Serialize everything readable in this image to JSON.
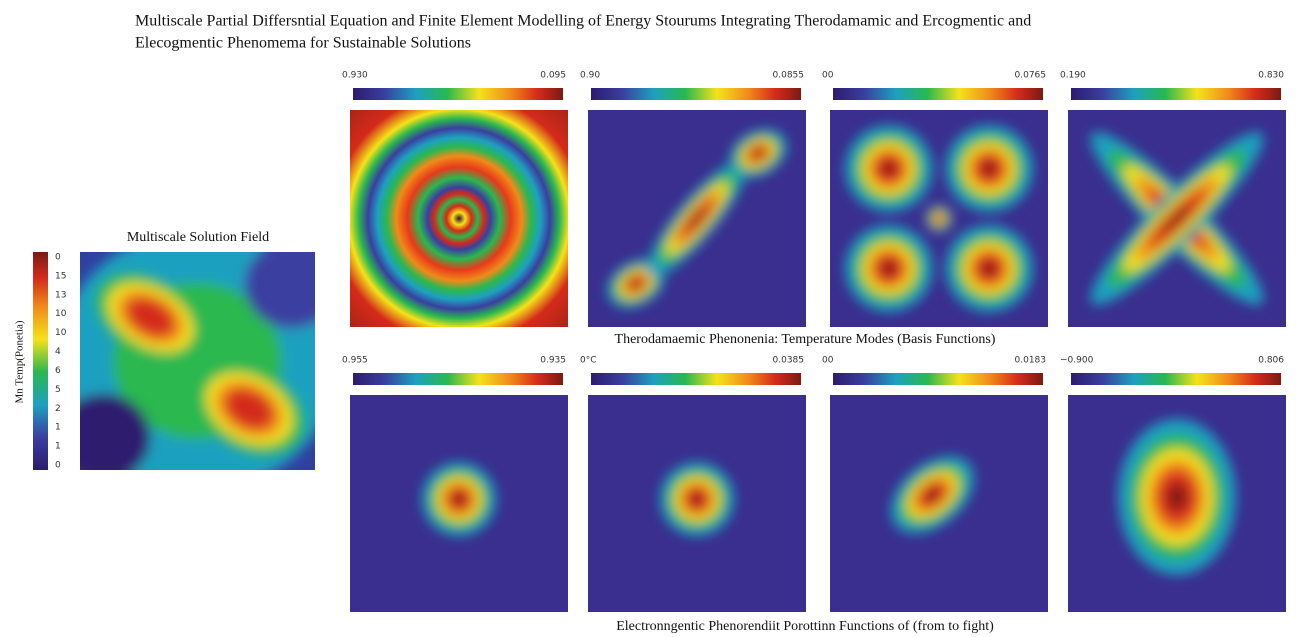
{
  "title": [
    "Multiscale Partial Differsntial Equation and Finite Element Modelling of Energy Stourums Integrating  Therodamamic and Ercogmentic and",
    "Elecogmentic Phenomema for Sustainable Solutions"
  ],
  "solution_field": {
    "title": "Multiscale Solution Field",
    "ylabel": "Mn Temp(Ponetia)",
    "colorbar_labels": [
      "0",
      "15",
      "13",
      "10",
      "10",
      "4",
      "6",
      "5",
      "2",
      "1",
      "1",
      "0"
    ]
  },
  "rows": [
    {
      "caption": "Therodamaemic Phenonenia: Temperature Modes (Basis Functions)",
      "panels": [
        {
          "min": "0.930",
          "max": "0.095"
        },
        {
          "min": "0.90",
          "max": "0.0855"
        },
        {
          "min": "00",
          "max": "0.0765"
        },
        {
          "min": "0.190",
          "max": "0.830"
        }
      ]
    },
    {
      "caption": "Electronngentic Phenorendiit Porottinn Functions of (from to fight)",
      "panels": [
        {
          "min": "0.955",
          "max": "0.935"
        },
        {
          "min": "0°C",
          "max": "0.0385"
        },
        {
          "min": "00",
          "max": "0.0183"
        },
        {
          "min": "−0.900",
          "max": "0.806"
        }
      ]
    }
  ]
}
